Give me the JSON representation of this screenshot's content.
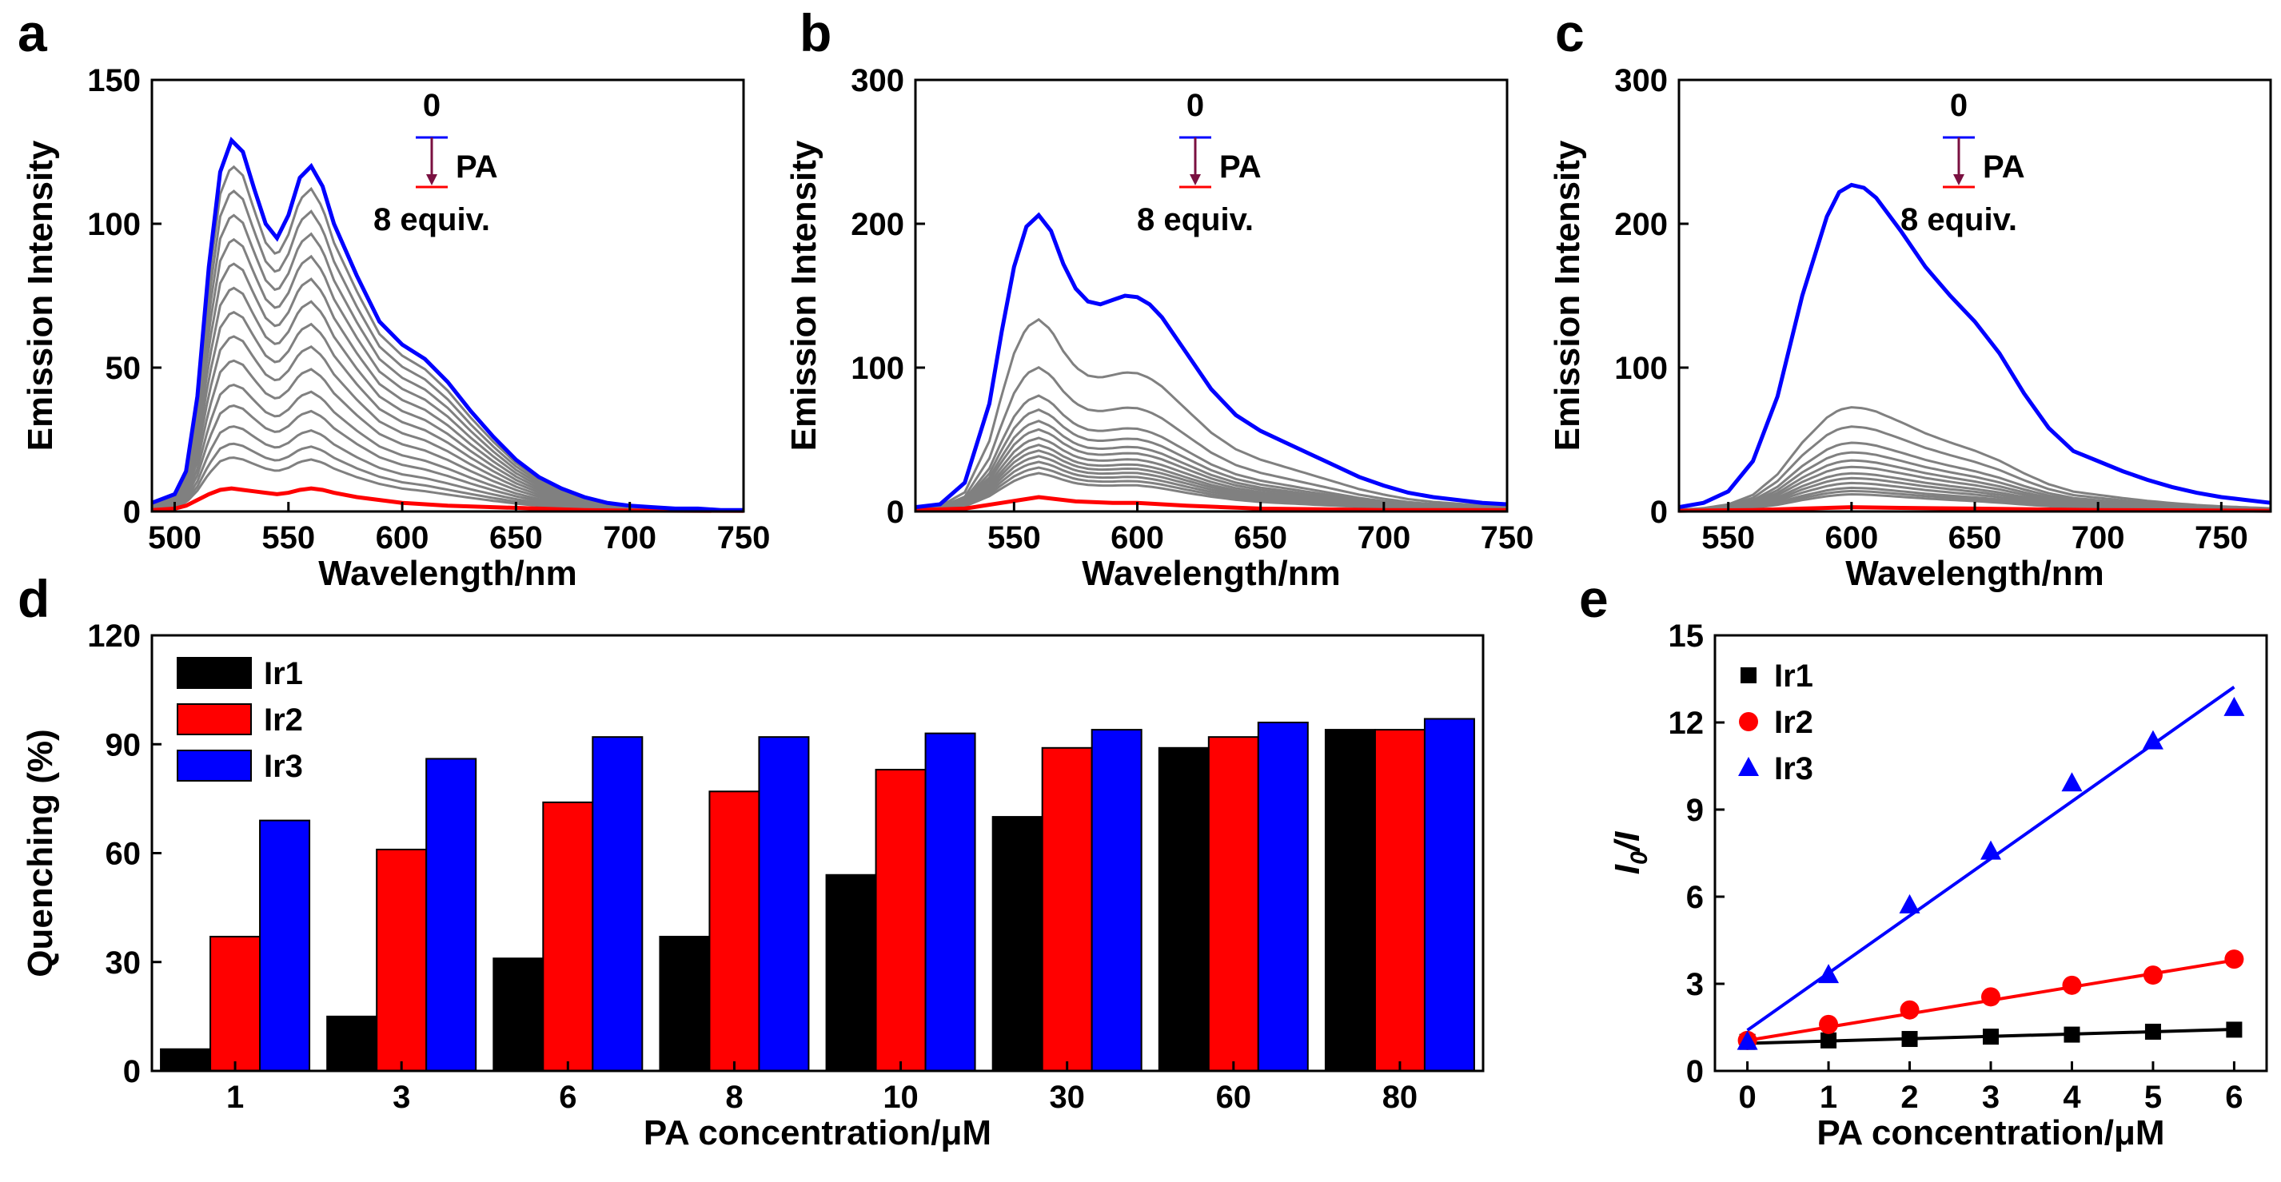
{
  "chart_data": [
    {
      "panel": "a",
      "type": "line",
      "xlabel": "Wavelength/nm",
      "ylabel": "Emission Intensity",
      "xlim": [
        490,
        750
      ],
      "ylim": [
        0,
        150
      ],
      "xticks": [
        500,
        550,
        600,
        650,
        700,
        750
      ],
      "yticks": [
        0,
        50,
        100,
        150
      ],
      "annotation": {
        "start": "0",
        "reagent": "PA",
        "end": "8 equiv."
      },
      "series": [
        {
          "name": "0 equiv",
          "color": "#0000ff",
          "x": [
            490,
            500,
            505,
            510,
            515,
            520,
            525,
            530,
            535,
            540,
            545,
            550,
            555,
            560,
            565,
            570,
            580,
            590,
            600,
            610,
            620,
            630,
            640,
            650,
            660,
            670,
            680,
            690,
            700,
            710,
            720,
            730,
            740,
            750
          ],
          "y": [
            3,
            6,
            14,
            40,
            85,
            118,
            129,
            125,
            112,
            100,
            95,
            103,
            116,
            120,
            113,
            100,
            82,
            66,
            58,
            53,
            45,
            35,
            26,
            18,
            12,
            8,
            5,
            3,
            2,
            1.5,
            1,
            1,
            0.5,
            0.5
          ]
        },
        {
          "name": "8 equiv",
          "color": "#ff0000",
          "x": [
            490,
            500,
            505,
            510,
            515,
            520,
            525,
            530,
            535,
            540,
            545,
            550,
            555,
            560,
            565,
            570,
            580,
            590,
            600,
            620,
            640,
            660,
            680,
            700,
            750
          ],
          "y": [
            0.5,
            1,
            2,
            4,
            6,
            7.5,
            8,
            7.5,
            7,
            6.5,
            6,
            6.5,
            7.5,
            8,
            7.5,
            6.5,
            5,
            4,
            3,
            2,
            1.5,
            1,
            0.5,
            0.3,
            0.2
          ]
        }
      ],
      "intermediate": {
        "color": "#808080",
        "scales": [
          0.93,
          0.86,
          0.79,
          0.72,
          0.65,
          0.58,
          0.51,
          0.44,
          0.37,
          0.3,
          0.24,
          0.18,
          0.13,
          0.09
        ]
      }
    },
    {
      "panel": "b",
      "type": "line",
      "xlabel": "Wavelength/nm",
      "ylabel": "Emission Intensity",
      "xlim": [
        510,
        750
      ],
      "ylim": [
        0,
        300
      ],
      "xticks": [
        550,
        600,
        650,
        700,
        750
      ],
      "yticks": [
        0,
        100,
        200,
        300
      ],
      "annotation": {
        "start": "0",
        "reagent": "PA",
        "end": "8 equiv."
      },
      "series": [
        {
          "name": "0 equiv",
          "color": "#0000ff",
          "x": [
            510,
            520,
            530,
            540,
            545,
            550,
            555,
            560,
            565,
            570,
            575,
            580,
            585,
            590,
            595,
            600,
            605,
            610,
            620,
            630,
            640,
            650,
            660,
            670,
            680,
            690,
            700,
            710,
            720,
            730,
            740,
            750
          ],
          "y": [
            3,
            5,
            20,
            75,
            125,
            170,
            198,
            206,
            195,
            172,
            155,
            146,
            144,
            147,
            150,
            149,
            144,
            135,
            110,
            85,
            67,
            56,
            48,
            40,
            32,
            24,
            18,
            13,
            10,
            8,
            6,
            5
          ]
        },
        {
          "name": "8 equiv",
          "color": "#ff0000",
          "x": [
            510,
            530,
            545,
            560,
            575,
            590,
            600,
            620,
            650,
            700,
            750
          ],
          "y": [
            1,
            2,
            6,
            10,
            7,
            6,
            6,
            4,
            2,
            1,
            1
          ]
        }
      ],
      "intermediate": {
        "color": "#808080",
        "scales": [
          0.63,
          0.46,
          0.36,
          0.31,
          0.27,
          0.24,
          0.21,
          0.185,
          0.165,
          0.145,
          0.125,
          0.105,
          0.085
        ]
      }
    },
    {
      "panel": "c",
      "type": "line",
      "xlabel": "Wavelength/nm",
      "ylabel": "Emission Intensity",
      "xlim": [
        530,
        770
      ],
      "ylim": [
        0,
        300
      ],
      "xticks": [
        550,
        600,
        650,
        700,
        750
      ],
      "yticks": [
        0,
        100,
        200,
        300
      ],
      "annotation": {
        "start": "0",
        "reagent": "PA",
        "end": "8 equiv."
      },
      "series": [
        {
          "name": "0 equiv",
          "color": "#0000ff",
          "x": [
            530,
            540,
            550,
            560,
            570,
            580,
            590,
            595,
            600,
            605,
            610,
            620,
            630,
            640,
            650,
            660,
            670,
            680,
            690,
            700,
            710,
            720,
            730,
            740,
            750,
            760,
            770
          ],
          "y": [
            3,
            6,
            14,
            35,
            80,
            150,
            205,
            222,
            227,
            225,
            218,
            195,
            170,
            150,
            132,
            110,
            82,
            58,
            42,
            35,
            28,
            22,
            17,
            13,
            10,
            8,
            6
          ]
        },
        {
          "name": "8 equiv",
          "color": "#ff0000",
          "x": [
            530,
            560,
            580,
            600,
            620,
            650,
            700,
            770
          ],
          "y": [
            0.5,
            1,
            2,
            3,
            2.5,
            2,
            1,
            0.5
          ]
        }
      ],
      "intermediate": {
        "color": "#808080",
        "scales": [
          0.31,
          0.25,
          0.2,
          0.17,
          0.145,
          0.125,
          0.105,
          0.09,
          0.075,
          0.06,
          0.05,
          0.04
        ]
      }
    },
    {
      "panel": "d",
      "type": "bar",
      "xlabel": "PA concentration/μM",
      "ylabel": "Quenching (%)",
      "ylim": [
        0,
        120
      ],
      "yticks": [
        0,
        30,
        60,
        90,
        120
      ],
      "categories": [
        "1",
        "3",
        "6",
        "8",
        "10",
        "30",
        "60",
        "80"
      ],
      "series": [
        {
          "name": "Ir1",
          "color": "#000000",
          "values": [
            6,
            15,
            31,
            37,
            54,
            70,
            89,
            94
          ]
        },
        {
          "name": "Ir2",
          "color": "#ff0000",
          "values": [
            37,
            61,
            74,
            77,
            83,
            89,
            92,
            94
          ]
        },
        {
          "name": "Ir3",
          "color": "#0000ff",
          "values": [
            69,
            86,
            92,
            92,
            93,
            94,
            96,
            97
          ]
        }
      ]
    },
    {
      "panel": "e",
      "type": "scatter",
      "xlabel": "PA concentration/μM",
      "ylabel_main": "I",
      "ylabel_sub": "0",
      "ylabel_tail": "/I",
      "xlim": [
        -0.4,
        6.4
      ],
      "ylim": [
        0,
        15
      ],
      "xticks": [
        0,
        1,
        2,
        3,
        4,
        5,
        6
      ],
      "yticks": [
        0,
        3,
        6,
        9,
        12,
        15
      ],
      "series": [
        {
          "name": "Ir1",
          "color": "#000000",
          "marker": "square",
          "x": [
            0,
            1,
            2,
            3,
            4,
            5,
            6
          ],
          "y": [
            1.0,
            1.05,
            1.1,
            1.18,
            1.25,
            1.35,
            1.42
          ],
          "fit": [
            0.95,
            0.08
          ]
        },
        {
          "name": "Ir2",
          "color": "#ff0000",
          "marker": "circle",
          "x": [
            0,
            1,
            2,
            3,
            4,
            5,
            6
          ],
          "y": [
            1.05,
            1.6,
            2.1,
            2.55,
            2.95,
            3.3,
            3.85
          ],
          "fit": [
            1.05,
            0.46
          ]
        },
        {
          "name": "Ir3",
          "color": "#0000ff",
          "marker": "triangle",
          "x": [
            0,
            1,
            2,
            3,
            4,
            5,
            6
          ],
          "y": [
            1.0,
            3.3,
            5.7,
            7.55,
            9.9,
            11.35,
            12.5
          ],
          "fit": [
            1.4,
            1.97
          ]
        }
      ]
    }
  ],
  "panel_labels": {
    "a": "a",
    "b": "b",
    "c": "c",
    "d": "d",
    "e": "e"
  }
}
